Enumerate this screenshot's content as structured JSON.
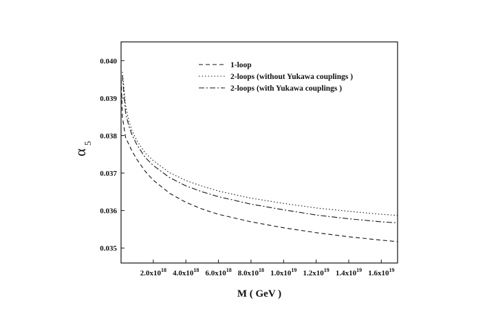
{
  "chart_data": {
    "type": "line",
    "title": "",
    "xlabel": "M ( GeV )",
    "ylabel": "α",
    "ylabel_subscript": "5",
    "xlim": [
      2e+16,
      1.7e+19
    ],
    "ylim": [
      0.0346,
      0.0405
    ],
    "x_ticks": [
      {
        "value": 2e+18,
        "mantissa": "2.0x10",
        "exp": "18"
      },
      {
        "value": 4e+18,
        "mantissa": "4.0x10",
        "exp": "18"
      },
      {
        "value": 6e+18,
        "mantissa": "6.0x10",
        "exp": "18"
      },
      {
        "value": 8e+18,
        "mantissa": "8.0x10",
        "exp": "18"
      },
      {
        "value": 1e+19,
        "mantissa": "1.0x10",
        "exp": "19"
      },
      {
        "value": 1.2e+19,
        "mantissa": "1.2x10",
        "exp": "19"
      },
      {
        "value": 1.4e+19,
        "mantissa": "1.4x10",
        "exp": "19"
      },
      {
        "value": 1.6e+19,
        "mantissa": "1.6x10",
        "exp": "19"
      }
    ],
    "y_ticks": [
      "0.035",
      "0.036",
      "0.037",
      "0.038",
      "0.039",
      "0.040"
    ],
    "legend_position": "top-right",
    "grid": false,
    "series": [
      {
        "name": "1-loop",
        "dash": "6,4",
        "x": [
          3e+16,
          1e+17,
          3e+17,
          5e+17,
          7e+17,
          1e+18,
          1.5e+18,
          2e+18,
          3e+18,
          4e+18,
          5e+18,
          6e+18,
          8e+18,
          1e+19,
          1.2e+19,
          1.4e+19,
          1.6e+19,
          1.7e+19
        ],
        "y": [
          0.0395,
          0.0385,
          0.03795,
          0.03776,
          0.03758,
          0.03736,
          0.03705,
          0.03681,
          0.03646,
          0.03622,
          0.03604,
          0.0359,
          0.0357,
          0.03554,
          0.03541,
          0.0353,
          0.03521,
          0.03517
        ]
      },
      {
        "name": "2-loops (without Yukawa couplings )",
        "dash": "1.5,3",
        "x": [
          1e+17,
          3e+17,
          5e+17,
          7e+17,
          1e+18,
          1.5e+18,
          2e+18,
          3e+18,
          4e+18,
          5e+18,
          6e+18,
          8e+18,
          1e+19,
          1.2e+19,
          1.4e+19,
          1.6e+19,
          1.7e+19
        ],
        "y": [
          0.0397,
          0.0388,
          0.03838,
          0.03812,
          0.03786,
          0.03754,
          0.03733,
          0.03701,
          0.0368,
          0.03665,
          0.03652,
          0.03633,
          0.03619,
          0.03607,
          0.03598,
          0.0359,
          0.03587
        ]
      },
      {
        "name": "2-loops (with Yukawa couplings )",
        "dash": "8,3,2,3",
        "x": [
          1e+17,
          3e+17,
          5e+17,
          7e+17,
          1e+18,
          1.5e+18,
          2e+18,
          3e+18,
          4e+18,
          5e+18,
          6e+18,
          8e+18,
          1e+19,
          1.2e+19,
          1.4e+19,
          1.6e+19,
          1.7e+19
        ],
        "y": [
          0.0396,
          0.0386,
          0.03825,
          0.03801,
          0.03775,
          0.03742,
          0.0372,
          0.03688,
          0.03666,
          0.0365,
          0.03637,
          0.03617,
          0.03602,
          0.03588,
          0.03578,
          0.0357,
          0.03567
        ]
      }
    ]
  }
}
